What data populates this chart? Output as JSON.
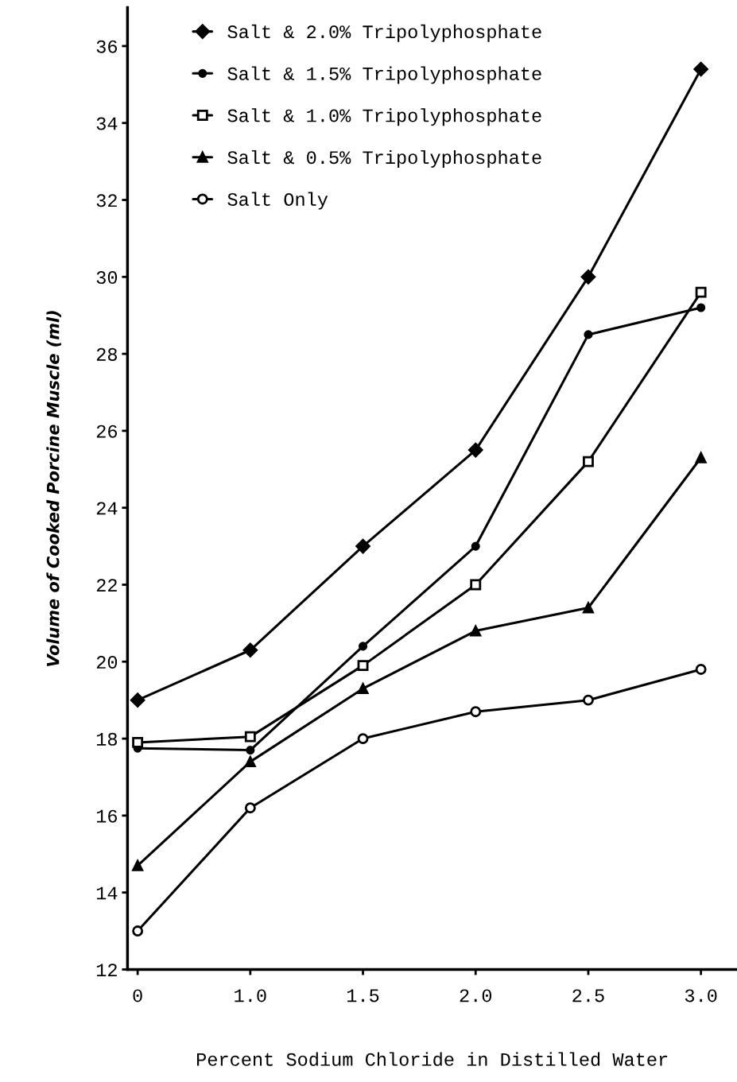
{
  "chart_data": {
    "type": "line",
    "xlabel": "Percent Sodium Chloride in Distilled Water",
    "ylabel": "Volume of Cooked Porcine Muscle (ml)",
    "categories": [
      "0",
      "1.0",
      "1.5",
      "2.0",
      "2.5",
      "3.0"
    ],
    "ylim": [
      12,
      37
    ],
    "yticks": [
      12,
      14,
      16,
      18,
      20,
      22,
      24,
      26,
      28,
      30,
      32,
      34,
      36
    ],
    "grid": false,
    "legend": "top left",
    "line_style": "solid",
    "series": [
      {
        "name": "Salt & 2.0% Tripolyphosphate",
        "color": "#000000",
        "marker": "diamond",
        "values": [
          19.0,
          20.3,
          23.0,
          25.5,
          30.0,
          35.4
        ]
      },
      {
        "name": "Salt & 1.5% Tripolyphosphate",
        "color": "#000000",
        "marker": "circle",
        "values": [
          17.75,
          17.7,
          20.4,
          23.0,
          28.5,
          29.2
        ]
      },
      {
        "name": "Salt & 1.0% Tripolyphosphate",
        "color": "#000000",
        "marker": "square",
        "values": [
          17.9,
          18.05,
          19.9,
          22.0,
          25.2,
          29.6
        ]
      },
      {
        "name": "Salt & 0.5% Tripolyphosphate",
        "color": "#000000",
        "marker": "triangle",
        "values": [
          14.7,
          17.4,
          19.3,
          20.8,
          21.4,
          25.3
        ]
      },
      {
        "name": "Salt Only",
        "color": "#000000",
        "marker": "circle",
        "values": [
          13.0,
          16.2,
          18.0,
          18.7,
          19.0,
          19.8
        ]
      }
    ]
  }
}
